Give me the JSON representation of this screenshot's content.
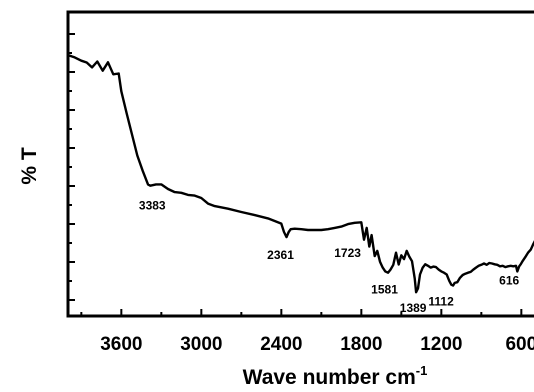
{
  "chart_data": {
    "type": "line",
    "title": "",
    "xlabel": "Wave number cm",
    "xlabel_superscript": "-1",
    "ylabel": "% T",
    "x_reversed": true,
    "xlim": [
      4000,
      400
    ],
    "ylim": [
      0,
      100
    ],
    "x_ticks": [
      "3600",
      "3000",
      "2400",
      "1800",
      "1200",
      "600"
    ],
    "x_tick_values": [
      3600,
      3000,
      2400,
      1800,
      1200,
      600
    ],
    "y_tick_labels_shown": false,
    "grid": false,
    "line_color": "#000000",
    "series": [
      {
        "x": [
          4000,
          3950,
          3900,
          3860,
          3820,
          3780,
          3740,
          3700,
          3660,
          3620,
          3600,
          3560,
          3520,
          3480,
          3440,
          3400,
          3383,
          3340,
          3300,
          3250,
          3200,
          3150,
          3100,
          3050,
          3000,
          2950,
          2900,
          2800,
          2700,
          2600,
          2500,
          2450,
          2400,
          2380,
          2361,
          2345,
          2330,
          2300,
          2250,
          2200,
          2150,
          2100,
          2050,
          2000,
          1950,
          1900,
          1850,
          1800,
          1780,
          1760,
          1740,
          1723,
          1700,
          1680,
          1660,
          1640,
          1620,
          1600,
          1581,
          1560,
          1540,
          1520,
          1500,
          1480,
          1460,
          1440,
          1420,
          1400,
          1389,
          1375,
          1360,
          1340,
          1320,
          1300,
          1280,
          1260,
          1240,
          1220,
          1200,
          1180,
          1160,
          1140,
          1125,
          1112,
          1100,
          1080,
          1060,
          1040,
          1020,
          1000,
          980,
          960,
          940,
          920,
          900,
          880,
          860,
          840,
          820,
          800,
          780,
          760,
          740,
          720,
          700,
          680,
          660,
          640,
          630,
          616,
          605,
          590,
          570,
          550,
          530,
          510,
          490,
          470,
          450,
          430,
          410,
          400
        ],
        "y": [
          94.1,
          93.2,
          91.9,
          91.2,
          89.3,
          91.6,
          88.0,
          91.3,
          86.6,
          86.9,
          80.0,
          71.3,
          63.1,
          54.9,
          48.9,
          43.6,
          43.1,
          43.6,
          43.6,
          41.8,
          40.6,
          40.3,
          39.5,
          39.2,
          38.3,
          36.1,
          35.1,
          34.1,
          32.8,
          31.6,
          30.3,
          29.3,
          28.3,
          25.0,
          23.0,
          25.0,
          26.1,
          26.3,
          26.1,
          25.8,
          25.8,
          25.8,
          26.1,
          26.6,
          27.1,
          28.1,
          28.6,
          28.8,
          22.0,
          26.6,
          19.3,
          23.8,
          15.6,
          17.6,
          13.4,
          11.1,
          9.6,
          9.1,
          10.3,
          12.2,
          16.9,
          12.3,
          15.9,
          14.4,
          17.6,
          15.4,
          13.6,
          6.9,
          1.5,
          3.0,
          8.4,
          11.1,
          12.4,
          11.8,
          11.1,
          11.5,
          11.3,
          10.3,
          9.6,
          9.1,
          8.4,
          5.9,
          4.4,
          4.1,
          5.1,
          5.4,
          7.1,
          8.2,
          8.7,
          9.1,
          9.4,
          10.3,
          11.1,
          11.8,
          12.2,
          12.7,
          12.2,
          12.9,
          12.7,
          12.4,
          12.2,
          11.6,
          11.8,
          11.3,
          11.6,
          11.8,
          11.6,
          11.8,
          9.6,
          11.6,
          12.4,
          13.7,
          15.2,
          16.9,
          18.1,
          20.3,
          22.3,
          24.3,
          26.8,
          28.8,
          31.6,
          33.1
        ]
      }
    ],
    "annotations": [
      {
        "text": "3383",
        "x": 3383
      },
      {
        "text": "2361",
        "x": 2361
      },
      {
        "text": "1723",
        "x": 1723
      },
      {
        "text": "1581",
        "x": 1581
      },
      {
        "text": "1389",
        "x": 1389
      },
      {
        "text": "1112",
        "x": 1112
      },
      {
        "text": "616",
        "x": 616
      }
    ]
  }
}
